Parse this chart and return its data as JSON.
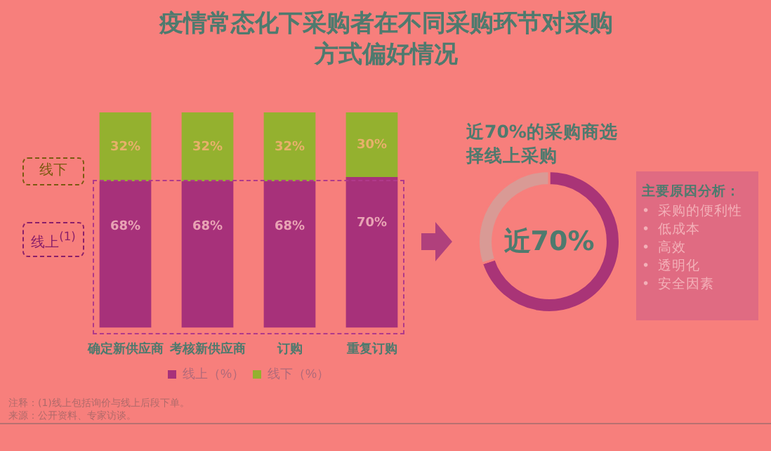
{
  "chart_data": [
    {
      "type": "bar",
      "title": "疫情常态化下采购者在不同采购环节对采购方式偏好情况",
      "stacked": true,
      "categories": [
        "确定新供应商",
        "考核新供应商",
        "订购",
        "重复订购"
      ],
      "series": [
        {
          "name": "线上（%）",
          "color": "#a7317a",
          "values": [
            68,
            68,
            68,
            70
          ],
          "value_labels": [
            "68%",
            "68%",
            "68%",
            "70%"
          ]
        },
        {
          "name": "线下（%）",
          "color": "#94b12f",
          "values": [
            32,
            32,
            32,
            30
          ],
          "value_labels": [
            "32%",
            "32%",
            "32%",
            "30%"
          ]
        }
      ],
      "legend": "bottom",
      "grid": false,
      "tick_labels": "x",
      "annotations": [
        "线下",
        "线上$^{(1)}$",
        "注释：(1)线上包括询价与线上后段下单。",
        "来源：公开资料、专家访谈。"
      ]
    },
    {
      "type": "donut",
      "title": "近70%的采购商选择线上采购",
      "categories": [
        null,
        null
      ],
      "values": [
        70,
        30
      ],
      "colors": [
        "#a93477",
        "#d99a95"
      ],
      "legend": false,
      "annotations": [
        "近70%",
        "主要原因分析：",
        "•  采购的便利性",
        "•  低成本",
        "•  高效",
        "•  透明化",
        "•  安全因素"
      ]
    }
  ]
}
